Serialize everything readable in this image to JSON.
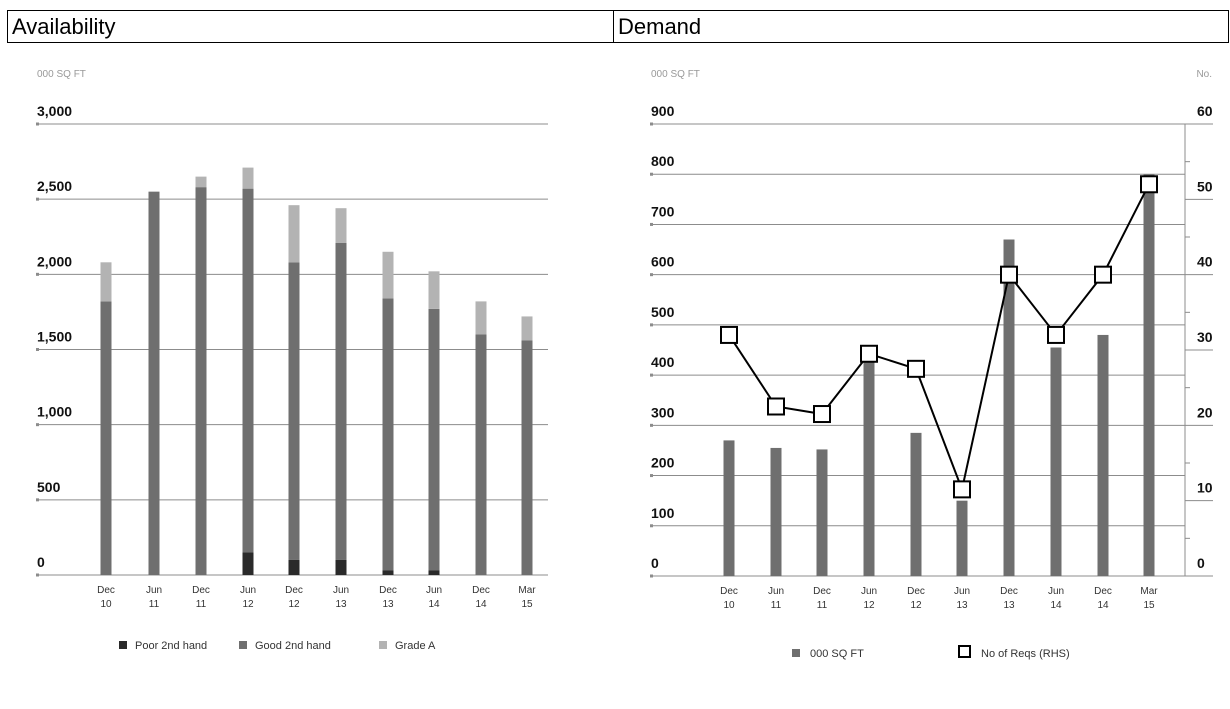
{
  "headers": {
    "left": "Availability",
    "right": "Demand"
  },
  "colors": {
    "poor": "#2a2a2a",
    "good": "#6f6f6f",
    "gradeA": "#b3b3b3",
    "grid": "#8c8c8c",
    "line": "#000000",
    "unit": "#999999"
  },
  "chart_data": [
    {
      "type": "bar",
      "stacked": true,
      "title": "Availability",
      "ylabel": "000 SQ FT",
      "ylim": [
        0,
        3000
      ],
      "yticks": [
        "0",
        "500",
        "1,000",
        "1,500",
        "2,000",
        "2,500",
        "3,000"
      ],
      "ytick_values": [
        0,
        500,
        1000,
        1500,
        2000,
        2500,
        3000
      ],
      "categories": [
        [
          "Dec",
          "10"
        ],
        [
          "Jun",
          "11"
        ],
        [
          "Dec",
          "11"
        ],
        [
          "Jun",
          "12"
        ],
        [
          "Dec",
          "12"
        ],
        [
          "Jun",
          "13"
        ],
        [
          "Dec",
          "13"
        ],
        [
          "Jun",
          "14"
        ],
        [
          "Dec",
          "14"
        ],
        [
          "Mar",
          "15"
        ]
      ],
      "series": [
        {
          "name": "Poor 2nd hand",
          "color": "#2a2a2a",
          "values": [
            0,
            0,
            0,
            150,
            100,
            100,
            30,
            30,
            0,
            0
          ]
        },
        {
          "name": "Good 2nd hand",
          "color": "#6f6f6f",
          "values": [
            1820,
            2550,
            2580,
            2420,
            1980,
            2110,
            1810,
            1740,
            1600,
            1560
          ]
        },
        {
          "name": "Grade A",
          "color": "#b3b3b3",
          "values": [
            260,
            0,
            70,
            140,
            380,
            230,
            310,
            250,
            220,
            160
          ]
        }
      ],
      "grid": true,
      "legend_position": "bottom"
    },
    {
      "type": "bar",
      "title": "Demand",
      "ylabel": "000 SQ FT",
      "y2label": "No.",
      "ylim": [
        0,
        900
      ],
      "y2lim": [
        0,
        60
      ],
      "yticks": [
        "0",
        "100",
        "200",
        "300",
        "400",
        "500",
        "600",
        "700",
        "800",
        "900"
      ],
      "ytick_values": [
        0,
        100,
        200,
        300,
        400,
        500,
        600,
        700,
        800,
        900
      ],
      "y2ticks": [
        "0",
        "10",
        "20",
        "30",
        "40",
        "50",
        "60"
      ],
      "y2tick_values": [
        0,
        10,
        20,
        30,
        40,
        50,
        60
      ],
      "categories": [
        [
          "Dec",
          "10"
        ],
        [
          "Jun",
          "11"
        ],
        [
          "Dec",
          "11"
        ],
        [
          "Jun",
          "12"
        ],
        [
          "Dec",
          "12"
        ],
        [
          "Jun",
          "13"
        ],
        [
          "Dec",
          "13"
        ],
        [
          "Jun",
          "14"
        ],
        [
          "Dec",
          "14"
        ],
        [
          "Mar",
          "15"
        ]
      ],
      "series": [
        {
          "name": "000 SQ FT",
          "kind": "bar",
          "axis": "left",
          "color": "#6f6f6f",
          "values": [
            270,
            255,
            252,
            435,
            285,
            150,
            670,
            455,
            480,
            800
          ]
        },
        {
          "name": "No of Reqs (RHS)",
          "kind": "line",
          "axis": "right",
          "color": "#000000",
          "values": [
            32,
            22.5,
            21.5,
            29.5,
            27.5,
            11.5,
            40,
            32,
            40,
            52
          ]
        }
      ],
      "grid": true,
      "legend_position": "bottom"
    }
  ]
}
